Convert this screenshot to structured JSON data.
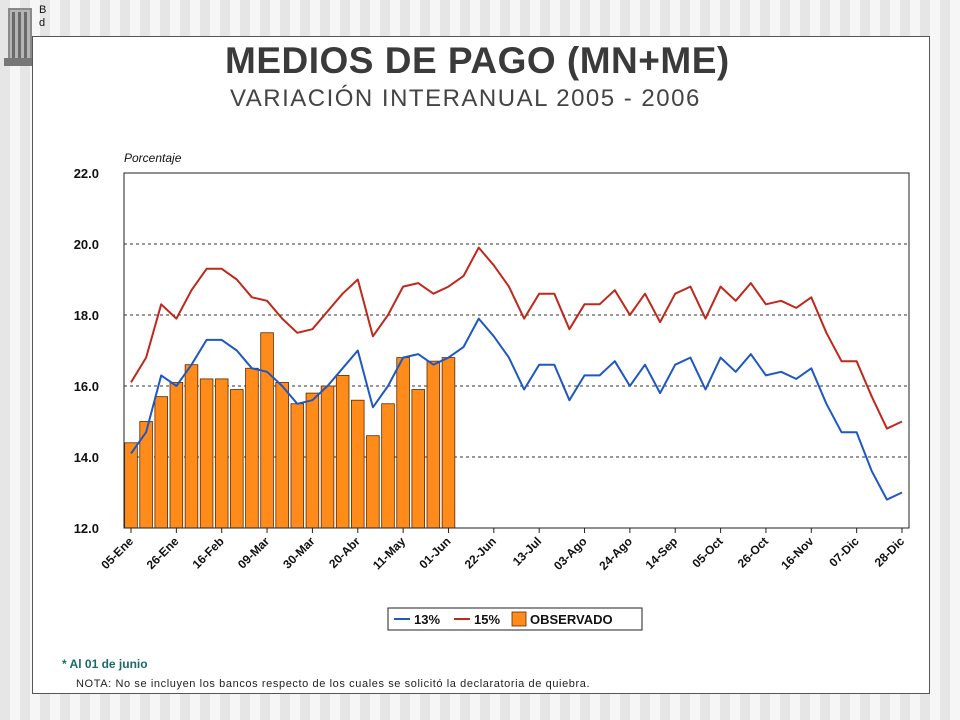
{
  "logo_text": [
    "B",
    "d"
  ],
  "title": "MEDIOS DE PAGO (MN+ME)",
  "subtitle": "VARIACIÓN INTERANUAL 2005 - 2006",
  "footnote": "* Al  01 de junio",
  "note": "NOTA: No se incluyen los bancos respecto de los cuales se solicitó la declaratoria de quiebra.",
  "colors": {
    "s13": "#1f57c3",
    "s15": "#c0281c",
    "bar": "#ff8c1a",
    "bar_border": "#5a2a00"
  },
  "chart_data": {
    "type": "bar",
    "ylabel": "Porcentaje",
    "ylim": [
      12,
      22
    ],
    "yticks": [
      "12.0",
      "14.0",
      "16.0",
      "18.0",
      "20.0",
      "22.0"
    ],
    "xtick_labels": [
      "05-Ene",
      "26-Ene",
      "16-Feb",
      "09-Mar",
      "30-Mar",
      "20-Abr",
      "11-May",
      "01-Jun",
      "22-Jun",
      "13-Jul",
      "03-Ago",
      "24-Ago",
      "14-Sep",
      "05-Oct",
      "26-Oct",
      "16-Nov",
      "07-Dic",
      "28-Dic"
    ],
    "week_count": 52,
    "grid": "horizontal dashed",
    "legend": {
      "position": "bottom",
      "entries": [
        "13%",
        "15%",
        "OBSERVADO"
      ]
    },
    "series": [
      {
        "name": "13%",
        "type": "line",
        "values": [
          14.1,
          14.7,
          16.3,
          16.0,
          16.6,
          17.3,
          17.3,
          17.0,
          16.5,
          16.4,
          16.0,
          15.5,
          15.6,
          16.0,
          16.5,
          17.0,
          15.4,
          16.0,
          16.8,
          16.9,
          16.6,
          16.8,
          17.1,
          17.9,
          17.4,
          16.8,
          15.9,
          16.6,
          16.6,
          15.6,
          16.3,
          16.3,
          16.7,
          16.0,
          16.6,
          15.8,
          16.6,
          16.8,
          15.9,
          16.8,
          16.4,
          16.9,
          16.3,
          16.4,
          16.2,
          16.5,
          15.5,
          14.7,
          14.7,
          13.6,
          12.8,
          13.0
        ]
      },
      {
        "name": "15%",
        "type": "line",
        "values": [
          16.1,
          16.8,
          18.3,
          17.9,
          18.7,
          19.3,
          19.3,
          19.0,
          18.5,
          18.4,
          17.9,
          17.5,
          17.6,
          18.1,
          18.6,
          19.0,
          17.4,
          18.0,
          18.8,
          18.9,
          18.6,
          18.8,
          19.1,
          19.9,
          19.4,
          18.8,
          17.9,
          18.6,
          18.6,
          17.6,
          18.3,
          18.3,
          18.7,
          18.0,
          18.6,
          17.8,
          18.6,
          18.8,
          17.9,
          18.8,
          18.4,
          18.9,
          18.3,
          18.4,
          18.2,
          18.5,
          17.5,
          16.7,
          16.7,
          15.7,
          14.8,
          15.0
        ]
      },
      {
        "name": "OBSERVADO",
        "type": "bar",
        "values": [
          14.4,
          15.0,
          15.7,
          16.1,
          16.6,
          16.2,
          16.2,
          15.9,
          16.5,
          17.5,
          16.1,
          15.5,
          15.8,
          16.0,
          16.3,
          15.6,
          14.6,
          15.5,
          16.8,
          15.9,
          16.7,
          16.8
        ]
      }
    ]
  }
}
